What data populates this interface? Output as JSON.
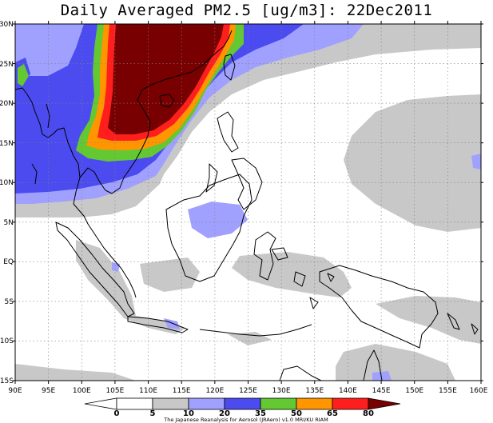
{
  "title": "Daily Averaged PM2.5 [ug/m3]: 22Dec2011",
  "map": {
    "lat_labels": [
      "30N",
      "25N",
      "20N",
      "15N",
      "10N",
      "5N",
      "EQ",
      "5S",
      "10S",
      "15S"
    ],
    "lon_labels": [
      "90E",
      "95E",
      "100E",
      "105E",
      "110E",
      "115E",
      "120E",
      "125E",
      "130E",
      "135E",
      "140E",
      "145E",
      "150E",
      "155E",
      "160E"
    ],
    "lon_range": [
      90,
      160
    ],
    "lat_range": [
      -15,
      30
    ]
  },
  "legend": {
    "levels": [
      "0",
      "5",
      "10",
      "20",
      "35",
      "50",
      "65",
      "80"
    ],
    "colors": [
      "#ffffff",
      "#ffffff",
      "#c8c8c8",
      "#a0a0ff",
      "#4b4bf0",
      "#64c832",
      "#ff9600",
      "#ff1e1e",
      "#780000"
    ],
    "credit": "The Japanese Reanalysis for Aerosol (JRAero) v1.0 MRI/KU RIAM"
  }
}
